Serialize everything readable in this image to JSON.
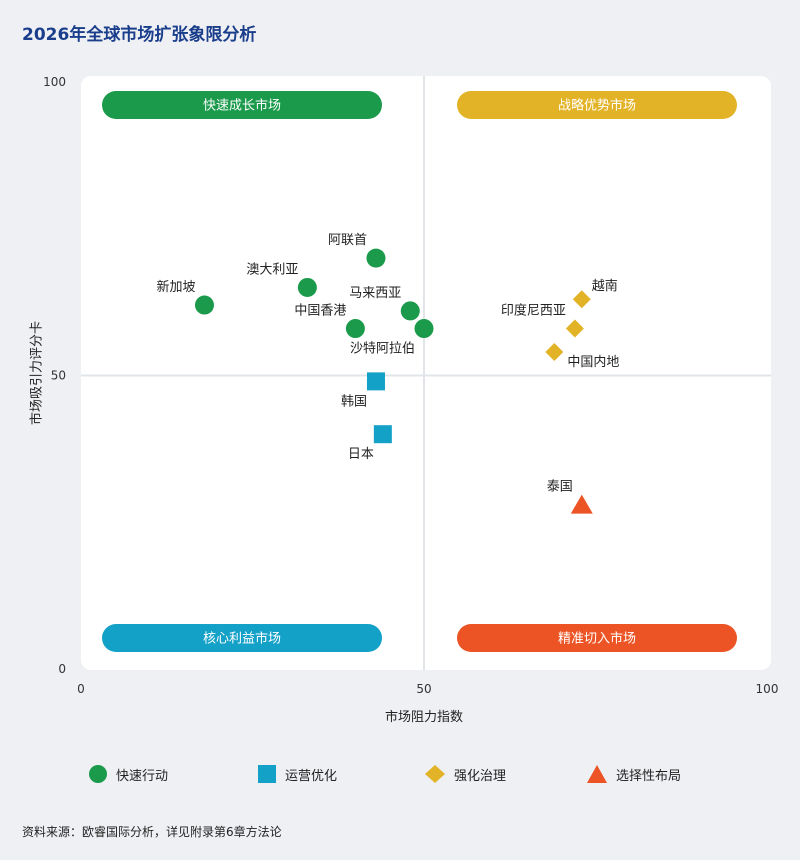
{
  "title": "2026年全球市场扩张象限分析",
  "source": "资料来源：欧睿国际分析，详见附录第6章方法论",
  "colors": {
    "green": "#1a9a4a",
    "blue": "#13a1c8",
    "yellow": "#e3b327",
    "orange": "#ec5425"
  },
  "chart_data": {
    "type": "scatter",
    "xlabel": "市场阻力指数",
    "ylabel": "市场吸引力评分卡",
    "xlim": [
      0,
      100
    ],
    "ylim": [
      0,
      100
    ],
    "x_ticks": [
      "0",
      "50",
      "100"
    ],
    "y_ticks": [
      "0",
      "50",
      "100"
    ],
    "grid": false,
    "divider_x": 50,
    "divider_y": 50,
    "legend_position": "bottom",
    "quadrants": [
      {
        "label": "快速成长市场",
        "position": "top-left",
        "color": "#1a9a4a"
      },
      {
        "label": "战略优势市场",
        "position": "top-right",
        "color": "#e3b327"
      },
      {
        "label": "核心利益市场",
        "position": "bottom-left",
        "color": "#13a1c8"
      },
      {
        "label": "精准切入市场",
        "position": "bottom-right",
        "color": "#ec5425"
      }
    ],
    "series": [
      {
        "name": "快速行动",
        "marker": "circle",
        "color": "#1a9a4a",
        "points": [
          {
            "label": "新加坡",
            "x": 18,
            "y": 62,
            "label_pos": "upper-left"
          },
          {
            "label": "澳大利亚",
            "x": 33,
            "y": 65,
            "label_pos": "upper-left"
          },
          {
            "label": "阿联首",
            "x": 43,
            "y": 70,
            "label_pos": "upper-left"
          },
          {
            "label": "马来西亚",
            "x": 48,
            "y": 61,
            "label_pos": "upper-left"
          },
          {
            "label": "中国香港",
            "x": 40,
            "y": 58,
            "label_pos": "upper-left"
          },
          {
            "label": "沙特阿拉伯",
            "x": 50,
            "y": 58,
            "label_pos": "lower-left"
          }
        ]
      },
      {
        "name": "运营优化",
        "marker": "square",
        "color": "#13a1c8",
        "points": [
          {
            "label": "韩国",
            "x": 43,
            "y": 49,
            "label_pos": "lower-left"
          },
          {
            "label": "日本",
            "x": 44,
            "y": 40,
            "label_pos": "lower-left"
          }
        ]
      },
      {
        "name": "强化治理",
        "marker": "diamond",
        "color": "#e3b327",
        "points": [
          {
            "label": "越南",
            "x": 73,
            "y": 63,
            "label_pos": "upper-right"
          },
          {
            "label": "印度尼西亚",
            "x": 72,
            "y": 58,
            "label_pos": "upper-left"
          },
          {
            "label": "中国内地",
            "x": 69,
            "y": 54,
            "label_pos": "lower-right"
          }
        ]
      },
      {
        "name": "选择性布局",
        "marker": "triangle",
        "color": "#ec5425",
        "points": [
          {
            "label": "泰国",
            "x": 73,
            "y": 28,
            "label_pos": "upper-left"
          }
        ]
      }
    ]
  }
}
